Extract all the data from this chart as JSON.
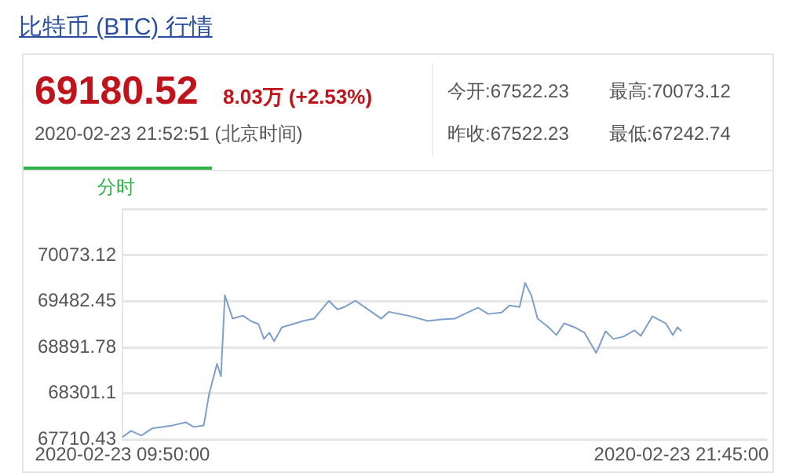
{
  "chart_data": {
    "type": "line",
    "title": "比特币 (BTC) 行情",
    "annotations": [
      "69180.52",
      "8.03万 (+2.53%)",
      "2020-02-23 21:52:51  (北京时间)",
      "今开:67522.23",
      "最高:70073.12",
      "昨收:67522.23",
      "最低:67242.74",
      "分时"
    ],
    "series": [
      {
        "color": "#7f9fc8",
        "x": [
          "2020-02-23T09:50",
          "2020-02-23T10:01",
          "2020-02-23T10:14",
          "2020-02-23T10:28",
          "2020-02-23T10:54",
          "2020-02-23T11:11",
          "2020-02-23T11:21",
          "2020-02-23T11:34",
          "2020-02-23T11:41",
          "2020-02-23T11:51",
          "2020-02-23T11:56",
          "2020-02-23T12:01",
          "2020-02-23T12:11",
          "2020-02-23T12:24",
          "2020-02-23T12:34",
          "2020-02-23T12:44",
          "2020-02-23T12:51",
          "2020-02-23T12:58",
          "2020-02-23T13:04",
          "2020-02-23T13:14",
          "2020-02-23T13:28",
          "2020-02-23T13:41",
          "2020-02-23T13:55",
          "2020-02-23T14:14",
          "2020-02-23T14:25",
          "2020-02-23T14:34",
          "2020-02-23T14:48",
          "2020-02-23T15:01",
          "2020-02-23T15:21",
          "2020-02-23T15:31",
          "2020-02-23T15:34",
          "2020-02-23T15:55",
          "2020-02-23T16:21",
          "2020-02-23T16:38",
          "2020-02-23T16:55",
          "2020-02-23T17:14",
          "2020-02-23T17:25",
          "2020-02-23T17:38",
          "2020-02-23T17:55",
          "2020-02-23T18:05",
          "2020-02-23T18:18",
          "2020-02-23T18:25",
          "2020-02-23T18:33",
          "2020-02-23T18:41",
          "2020-02-23T18:55",
          "2020-02-23T19:05",
          "2020-02-23T19:15",
          "2020-02-23T19:28",
          "2020-02-23T19:41",
          "2020-02-23T19:56",
          "2020-02-23T20:08",
          "2020-02-23T20:18",
          "2020-02-23T20:31",
          "2020-02-23T20:45",
          "2020-02-23T20:53",
          "2020-02-23T21:08",
          "2020-02-23T21:25",
          "2020-02-23T21:34",
          "2020-02-23T21:40",
          "2020-02-23T21:45"
        ],
        "values": [
          67740,
          67820,
          67760,
          67850,
          67890,
          67930,
          67870,
          67890,
          68300,
          68680,
          68520,
          69560,
          69260,
          69300,
          69230,
          69190,
          69000,
          69080,
          68970,
          69150,
          69190,
          69230,
          69260,
          69490,
          69380,
          69410,
          69490,
          69400,
          69260,
          69350,
          69340,
          69300,
          69230,
          69250,
          69260,
          69350,
          69400,
          69320,
          69340,
          69430,
          69410,
          69720,
          69560,
          69260,
          69150,
          69050,
          69200,
          69150,
          69080,
          68820,
          69100,
          69000,
          69030,
          69110,
          69040,
          69290,
          69200,
          69050,
          69150,
          69100
        ]
      }
    ],
    "xlim": [
      "2020-02-23T09:50",
      "2020-02-23T23:35"
    ],
    "xticks": [
      {
        "value": "2020-02-23T09:50",
        "label": "2020-02-23 09:50:00"
      },
      {
        "value": "2020-02-23T21:45",
        "label": "2020-02-23 21:45:00"
      }
    ],
    "ylim": [
      67710.43,
      70663.79
    ],
    "yticks": [
      67710.43,
      68301.1,
      68891.78,
      69482.45,
      70073.12,
      {
        "value": 70663.79,
        "label": null
      }
    ],
    "grid": "y",
    "legend": false,
    "marker": "none",
    "line_style": "solid"
  }
}
